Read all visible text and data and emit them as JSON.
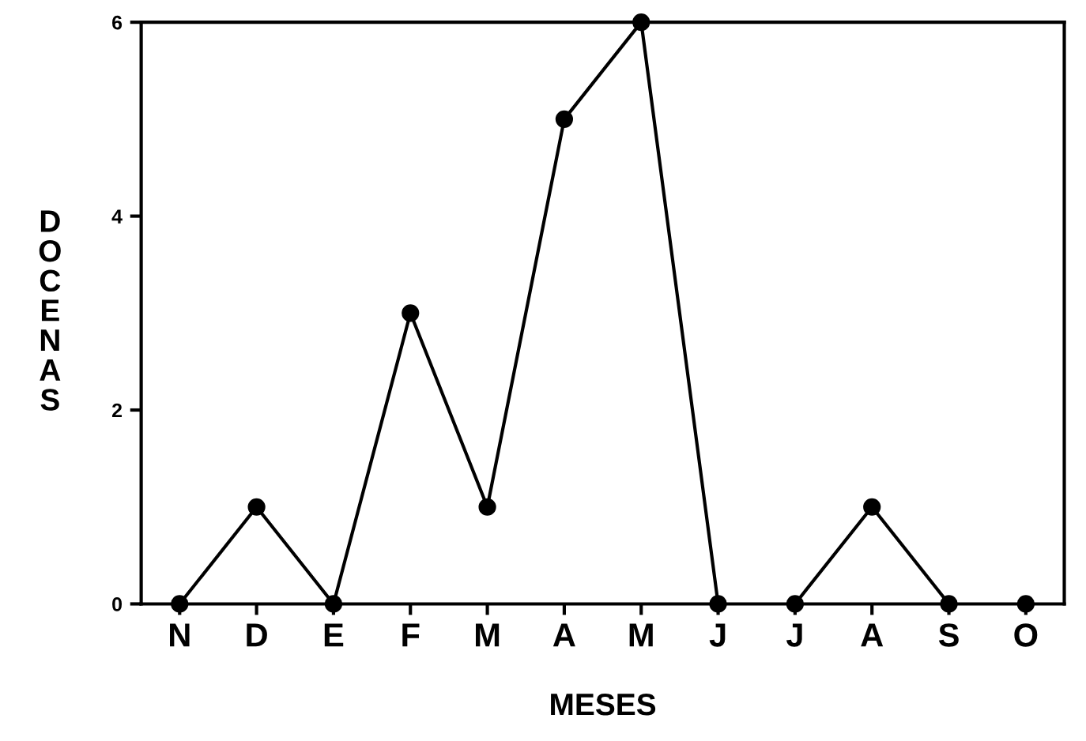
{
  "chart_data": {
    "type": "line",
    "xlabel": "MESES",
    "ylabel": "DOCENAS",
    "categories": [
      "N",
      "D",
      "E",
      "F",
      "M",
      "A",
      "M",
      "J",
      "J",
      "A",
      "S",
      "O"
    ],
    "series": [
      {
        "color": "#000000",
        "values": [
          0,
          1,
          0,
          3,
          1,
          5,
          6,
          0,
          null,
          null,
          null,
          null
        ]
      },
      {
        "color": "#000000",
        "values": [
          null,
          null,
          null,
          null,
          null,
          null,
          null,
          null,
          0,
          1,
          0,
          null
        ]
      },
      {
        "color": "#000000",
        "values": [
          null,
          null,
          null,
          null,
          null,
          null,
          null,
          null,
          null,
          null,
          null,
          0
        ]
      }
    ],
    "ylim": [
      0,
      6
    ],
    "yticks": [
      0,
      2,
      4,
      6
    ],
    "grid": false,
    "marker": "circle",
    "line_style": "solid"
  }
}
